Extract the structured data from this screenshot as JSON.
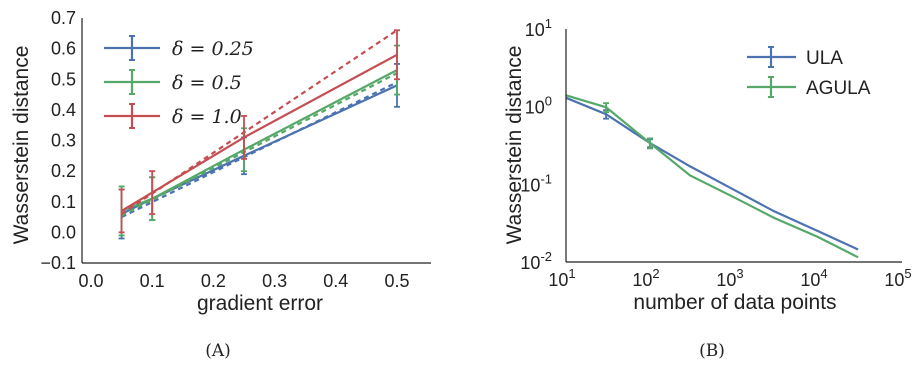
{
  "chart_data": [
    {
      "type": "line",
      "caption": "(A)",
      "xlabel": "gradient error",
      "ylabel": "Wasserstein distance",
      "xlim": [
        0.0,
        0.55
      ],
      "ylim": [
        -0.1,
        0.7
      ],
      "xticks": [
        "0.0",
        "0.1",
        "0.2",
        "0.3",
        "0.4",
        "0.5"
      ],
      "xtick_values": [
        0.0,
        0.1,
        0.2,
        0.3,
        0.4,
        0.5
      ],
      "yticks": [
        "−0.1",
        "0.0",
        "0.1",
        "0.2",
        "0.3",
        "0.4",
        "0.5",
        "0.6",
        "0.7"
      ],
      "ytick_values": [
        -0.1,
        0.0,
        0.1,
        0.2,
        0.3,
        0.4,
        0.5,
        0.6,
        0.7
      ],
      "grid": false,
      "legend_position": "top-left",
      "x": [
        0.05,
        0.1,
        0.25,
        0.5
      ],
      "series": [
        {
          "name": "δ = 0.25",
          "color": "#4c72b0",
          "values": [
            0.06,
            0.11,
            0.25,
            0.48
          ],
          "errors": [
            0.08,
            0.07,
            0.06,
            0.07
          ],
          "dashed_fit": [
            [
              0.05,
              0.05
            ],
            [
              0.5,
              0.49
            ]
          ]
        },
        {
          "name": "δ = 0.5",
          "color": "#55a868",
          "values": [
            0.07,
            0.11,
            0.27,
            0.53
          ],
          "errors": [
            0.08,
            0.07,
            0.07,
            0.08
          ],
          "dashed_fit": [
            [
              0.05,
              0.055
            ],
            [
              0.5,
              0.52
            ]
          ]
        },
        {
          "name": "δ = 1.0",
          "color": "#c44e52",
          "values": [
            0.07,
            0.13,
            0.31,
            0.58
          ],
          "errors": [
            0.07,
            0.07,
            0.07,
            0.08
          ],
          "dashed_fit": [
            [
              0.05,
              0.06
            ],
            [
              0.5,
              0.66
            ]
          ]
        }
      ]
    },
    {
      "type": "line",
      "caption": "(B)",
      "xlabel": "number of data points",
      "ylabel": "Wasserstein distance",
      "xscale": "log",
      "yscale": "log",
      "xlim": [
        10,
        100000
      ],
      "ylim": [
        0.01,
        10
      ],
      "xticks": [
        {
          "base": "10",
          "exp": "1"
        },
        {
          "base": "10",
          "exp": "2"
        },
        {
          "base": "10",
          "exp": "3"
        },
        {
          "base": "10",
          "exp": "4"
        },
        {
          "base": "10",
          "exp": "5"
        }
      ],
      "xtick_values": [
        10,
        100,
        1000,
        10000,
        100000
      ],
      "yticks": [
        {
          "base": "10",
          "exp": "-2"
        },
        {
          "base": "10",
          "exp": "-1"
        },
        {
          "base": "10",
          "exp": "0"
        },
        {
          "base": "10",
          "exp": "1"
        }
      ],
      "ytick_values": [
        0.01,
        0.1,
        1,
        10
      ],
      "grid": false,
      "legend_position": "top-right",
      "x": [
        10,
        30,
        100,
        300,
        1000,
        3000,
        10000,
        30000
      ],
      "series": [
        {
          "name": "ULA",
          "color": "#4c72b0",
          "values": [
            1.3,
            0.8,
            0.34,
            0.17,
            0.085,
            0.045,
            0.025,
            0.0145
          ],
          "errors_at": [
            30,
            100
          ],
          "errors": [
            0.1,
            0.04
          ]
        },
        {
          "name": "AGULA",
          "color": "#55a868",
          "values": [
            1.4,
            0.98,
            0.34,
            0.13,
            0.068,
            0.037,
            0.021,
            0.0115
          ],
          "errors_at": [
            30,
            100
          ],
          "errors": [
            0.13,
            0.05
          ]
        }
      ]
    }
  ]
}
